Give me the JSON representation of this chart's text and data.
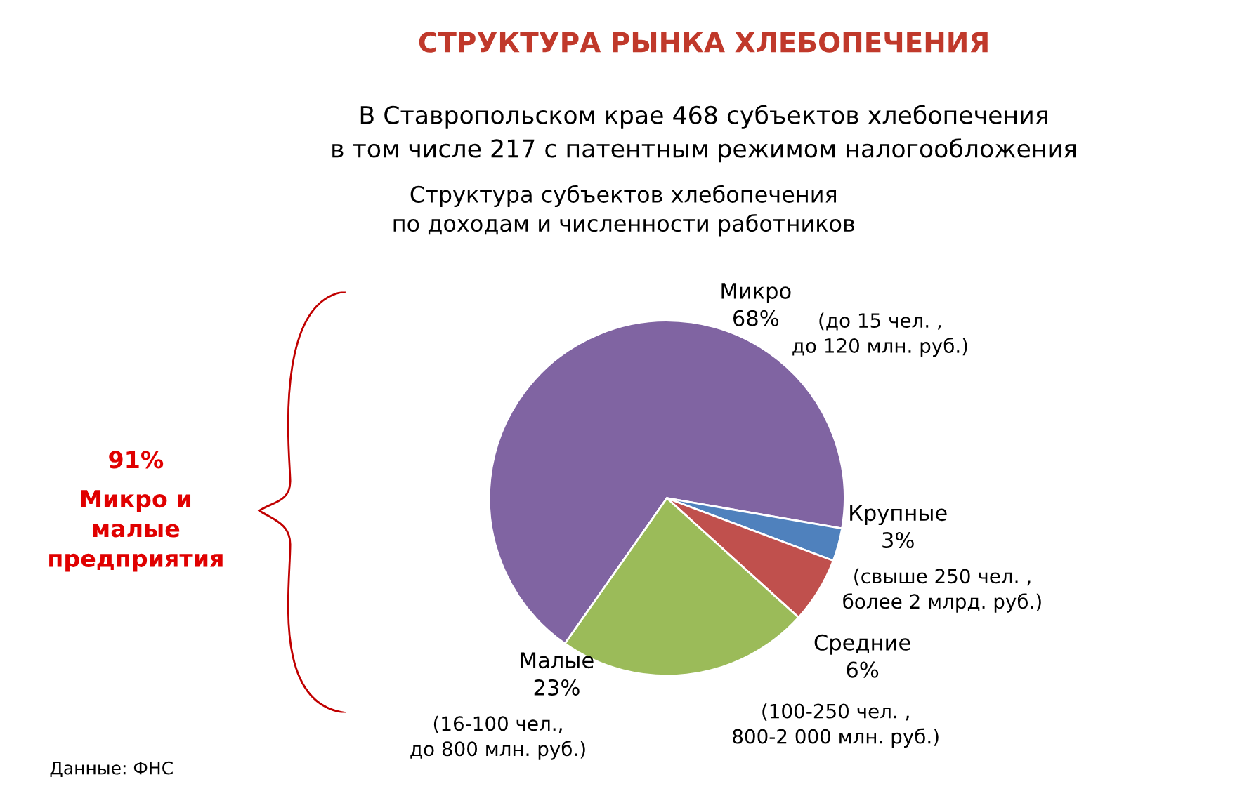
{
  "chart_data": {
    "type": "pie",
    "title": "СТРУКТУРА РЫНКА ХЛЕБОПЕЧЕНИЯ",
    "subtitle": "В Ставропольском крае 468 субъектов хлебопечения\nв том числе 217 с патентным режимом налогообложения",
    "categories": [
      "Микро",
      "Крупные",
      "Средние",
      "Малые"
    ],
    "values": [
      68,
      3,
      6,
      23
    ],
    "colors": [
      "#8064a2",
      "#4f81bd",
      "#c0504d",
      "#9bbb59"
    ],
    "value_labels": [
      "68%",
      "3%",
      "6%",
      "23%"
    ],
    "annotations": [
      "(до 15 чел. ,\nдо 120 млн. руб.)",
      "(свыше 250 чел. ,\nболее 2 млрд. руб.)",
      "(100-250 чел. ,\n800-2 000 млн. руб.)",
      "(16-100 чел.,\nдо 800 млн. руб.)",
      "Структура субъектов хлебопечения\nпо доходам и численности работников",
      "91%",
      "Микро и\nмалые\nпредприятия",
      "Данные: ФНС"
    ]
  }
}
